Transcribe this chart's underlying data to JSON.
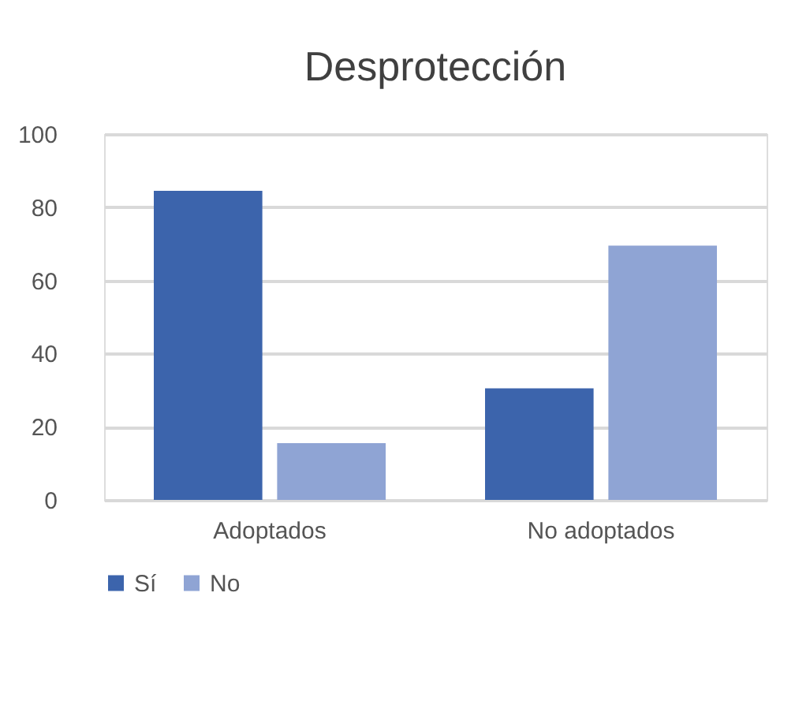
{
  "chart_data": {
    "type": "bar",
    "title": "Desprotección",
    "categories": [
      "Adoptados",
      "No adoptados"
    ],
    "series": [
      {
        "name": "Sí",
        "color": "#3c64ac",
        "values": [
          84.5,
          30.5
        ]
      },
      {
        "name": "No",
        "color": "#8fa4d4",
        "values": [
          15.5,
          69.5
        ]
      }
    ],
    "ylim": [
      0,
      100
    ],
    "yticks": [
      0,
      20,
      40,
      60,
      80,
      100
    ],
    "grid": "y",
    "legend": "bottom"
  }
}
